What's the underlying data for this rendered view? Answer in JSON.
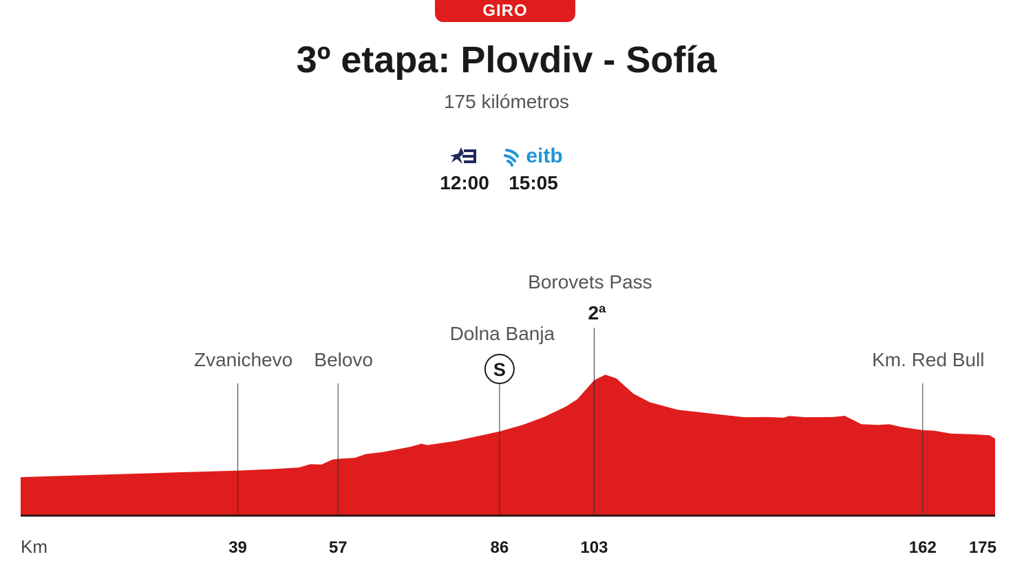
{
  "header": {
    "badge": "GIRO",
    "title": "3º etapa: Plovdiv - Sofía",
    "subtitle": "175 kilómetros"
  },
  "broadcasters": [
    {
      "name": "Teledeporte",
      "icon": "teledeporte-star-logo",
      "color": "#1f2a5a",
      "time": "12:00"
    },
    {
      "name": "eitb",
      "icon": "eitb-logo",
      "color": "#1e95d6",
      "logo_text": "eitb",
      "time": "15:05"
    }
  ],
  "chart_data": {
    "type": "area",
    "xlabel": "Km",
    "xlim": [
      0,
      175
    ],
    "fill_color": "#e01d1d",
    "elevation_profile": [
      [
        0,
        16.0
      ],
      [
        10,
        16.7
      ],
      [
        20,
        17.4
      ],
      [
        30,
        18.1
      ],
      [
        39,
        18.7
      ],
      [
        45,
        19.3
      ],
      [
        50,
        20.0
      ],
      [
        52,
        21.4
      ],
      [
        54,
        21.2
      ],
      [
        56,
        23.3
      ],
      [
        57,
        23.6
      ],
      [
        60,
        24.0
      ],
      [
        62,
        25.6
      ],
      [
        65,
        26.4
      ],
      [
        70,
        28.6
      ],
      [
        72,
        29.9
      ],
      [
        73,
        29.3
      ],
      [
        78,
        31.0
      ],
      [
        82,
        33.0
      ],
      [
        86,
        35.0
      ],
      [
        90,
        37.6
      ],
      [
        94,
        41.0
      ],
      [
        98,
        45.4
      ],
      [
        100,
        48.4
      ],
      [
        103,
        56.3
      ],
      [
        105,
        58.6
      ],
      [
        107,
        57.0
      ],
      [
        110,
        50.7
      ],
      [
        113,
        47.1
      ],
      [
        118,
        44.0
      ],
      [
        124,
        42.4
      ],
      [
        130,
        40.9
      ],
      [
        134,
        41.0
      ],
      [
        137,
        40.7
      ],
      [
        138,
        41.4
      ],
      [
        141,
        40.9
      ],
      [
        146,
        41.0
      ],
      [
        148,
        41.5
      ],
      [
        151,
        38.0
      ],
      [
        154,
        37.7
      ],
      [
        156,
        38.0
      ],
      [
        158,
        36.9
      ],
      [
        162,
        35.5
      ],
      [
        164,
        35.3
      ],
      [
        167,
        34.1
      ],
      [
        171,
        33.8
      ],
      [
        174,
        33.4
      ],
      [
        175,
        32.0
      ]
    ],
    "x_ticks": [
      {
        "km": 39,
        "label": "39",
        "place": "Zvanichevo"
      },
      {
        "km": 57,
        "label": "57",
        "place": "Belovo"
      },
      {
        "km": 86,
        "label": "86",
        "place": "Dolna Banja",
        "marker": "S"
      },
      {
        "km": 103,
        "label": "103",
        "place": "Borovets Pass",
        "category": "2ª"
      },
      {
        "km": 162,
        "label": "162",
        "place": "Km. Red Bull"
      },
      {
        "km": 175,
        "label": "175"
      }
    ]
  }
}
